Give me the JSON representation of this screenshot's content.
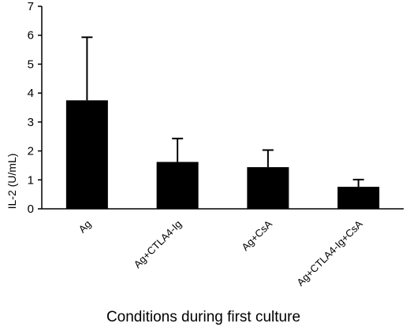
{
  "chart_data": {
    "type": "bar",
    "categories": [
      "Ag",
      "Ag+CTLA4-Ig",
      "Ag+CsA",
      "Ag+CTLA4-Ig+CsA"
    ],
    "values": [
      3.75,
      1.62,
      1.44,
      0.76
    ],
    "error_upper": [
      5.93,
      2.43,
      2.03,
      1.01
    ],
    "title": "",
    "xlabel": "Conditions during first culture",
    "ylabel": "IL-2 (U/mL)",
    "ylim": [
      0,
      7
    ],
    "yticks": [
      0,
      1,
      2,
      3,
      4,
      5,
      6,
      7
    ],
    "grid": false,
    "bar_color": "#000000"
  }
}
